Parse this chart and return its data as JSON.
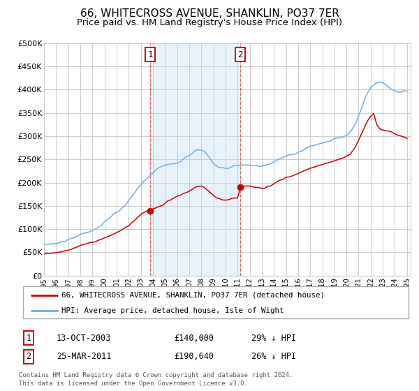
{
  "title": "66, WHITECROSS AVENUE, SHANKLIN, PO37 7ER",
  "subtitle": "Price paid vs. HM Land Registry's House Price Index (HPI)",
  "ylim": [
    0,
    500000
  ],
  "yticks": [
    0,
    50000,
    100000,
    150000,
    200000,
    250000,
    300000,
    350000,
    400000,
    450000,
    500000
  ],
  "ytick_labels": [
    "£0",
    "£50K",
    "£100K",
    "£150K",
    "£200K",
    "£250K",
    "£300K",
    "£350K",
    "£400K",
    "£450K",
    "£500K"
  ],
  "sale1_date": 2003.78,
  "sale1_price": 140000,
  "sale1_label": "1",
  "sale2_date": 2011.22,
  "sale2_price": 190640,
  "sale2_label": "2",
  "legend_line1": "66, WHITECROSS AVENUE, SHANKLIN, PO37 7ER (detached house)",
  "legend_line2": "HPI: Average price, detached house, Isle of Wight",
  "footnote1": "Contains HM Land Registry data © Crown copyright and database right 2024.",
  "footnote2": "This data is licensed under the Open Government Licence v3.0.",
  "table_row1": [
    "1",
    "13-OCT-2003",
    "£140,000",
    "29% ↓ HPI"
  ],
  "table_row2": [
    "2",
    "25-MAR-2011",
    "£190,640",
    "26% ↓ HPI"
  ],
  "hpi_color": "#6aaee8",
  "price_color": "#cc0000",
  "vline_color": "#e06060",
  "shade_color": "#e8f2fb",
  "grid_color": "#cccccc",
  "title_fontsize": 11,
  "subtitle_fontsize": 9.5,
  "hpi_data_x": [
    1995.0,
    1995.25,
    1995.5,
    1995.75,
    1996.0,
    1996.25,
    1996.5,
    1996.75,
    1997.0,
    1997.25,
    1997.5,
    1997.75,
    1998.0,
    1998.25,
    1998.5,
    1998.75,
    1999.0,
    1999.25,
    1999.5,
    1999.75,
    2000.0,
    2000.25,
    2000.5,
    2000.75,
    2001.0,
    2001.25,
    2001.5,
    2001.75,
    2002.0,
    2002.25,
    2002.5,
    2002.75,
    2003.0,
    2003.25,
    2003.5,
    2003.75,
    2004.0,
    2004.25,
    2004.5,
    2004.75,
    2005.0,
    2005.25,
    2005.5,
    2005.75,
    2006.0,
    2006.25,
    2006.5,
    2006.75,
    2007.0,
    2007.25,
    2007.5,
    2007.75,
    2008.0,
    2008.25,
    2008.5,
    2008.75,
    2009.0,
    2009.25,
    2009.5,
    2009.75,
    2010.0,
    2010.25,
    2010.5,
    2010.75,
    2011.0,
    2011.25,
    2011.5,
    2011.75,
    2012.0,
    2012.25,
    2012.5,
    2012.75,
    2013.0,
    2013.25,
    2013.5,
    2013.75,
    2014.0,
    2014.25,
    2014.5,
    2014.75,
    2015.0,
    2015.25,
    2015.5,
    2015.75,
    2016.0,
    2016.25,
    2016.5,
    2016.75,
    2017.0,
    2017.25,
    2017.5,
    2017.75,
    2018.0,
    2018.25,
    2018.5,
    2018.75,
    2019.0,
    2019.25,
    2019.5,
    2019.75,
    2020.0,
    2020.25,
    2020.5,
    2020.75,
    2021.0,
    2021.25,
    2021.5,
    2021.75,
    2022.0,
    2022.25,
    2022.5,
    2022.75,
    2023.0,
    2023.25,
    2023.5,
    2023.75,
    2024.0,
    2024.25,
    2024.5,
    2024.75,
    2025.0
  ],
  "hpi_data_y": [
    67000,
    67500,
    68000,
    68500,
    69500,
    71000,
    73000,
    75000,
    77000,
    79500,
    82000,
    85000,
    88000,
    91000,
    93000,
    95000,
    97000,
    100000,
    104000,
    109000,
    115000,
    120000,
    126000,
    131000,
    136000,
    141000,
    147000,
    154000,
    161000,
    170000,
    179000,
    188000,
    196000,
    203000,
    210000,
    216000,
    221000,
    226000,
    231000,
    235000,
    237000,
    239000,
    240000,
    241000,
    243000,
    246000,
    250000,
    254000,
    258000,
    263000,
    268000,
    270000,
    270000,
    267000,
    260000,
    251000,
    242000,
    236000,
    232000,
    231000,
    231000,
    232000,
    234000,
    236000,
    237000,
    238000,
    239000,
    239000,
    238000,
    237000,
    236000,
    235000,
    235000,
    236000,
    238000,
    241000,
    244000,
    248000,
    252000,
    255000,
    257000,
    259000,
    260000,
    262000,
    265000,
    268000,
    271000,
    274000,
    277000,
    279000,
    281000,
    283000,
    285000,
    287000,
    289000,
    291000,
    293000,
    295000,
    297000,
    299000,
    302000,
    307000,
    316000,
    328000,
    343000,
    360000,
    378000,
    393000,
    403000,
    410000,
    415000,
    416000,
    414000,
    410000,
    405000,
    400000,
    397000,
    395000,
    395000,
    396000,
    397000
  ],
  "price_data_x": [
    1995.0,
    1995.25,
    1995.5,
    1995.75,
    1996.0,
    1996.25,
    1996.5,
    1996.75,
    1997.0,
    1997.25,
    1997.5,
    1997.75,
    1998.0,
    1998.25,
    1998.5,
    1998.75,
    1999.0,
    1999.25,
    1999.5,
    1999.75,
    2000.0,
    2000.25,
    2000.5,
    2000.75,
    2001.0,
    2001.25,
    2001.5,
    2001.75,
    2002.0,
    2002.25,
    2002.5,
    2002.75,
    2003.0,
    2003.25,
    2003.5,
    2003.75,
    2004.0,
    2004.25,
    2004.5,
    2004.75,
    2005.0,
    2005.25,
    2005.5,
    2005.75,
    2006.0,
    2006.25,
    2006.5,
    2006.75,
    2007.0,
    2007.25,
    2007.5,
    2007.75,
    2008.0,
    2008.25,
    2008.5,
    2008.75,
    2009.0,
    2009.25,
    2009.5,
    2009.75,
    2010.0,
    2010.25,
    2010.5,
    2010.75,
    2011.0,
    2011.25,
    2011.5,
    2011.75,
    2012.0,
    2012.25,
    2012.5,
    2012.75,
    2013.0,
    2013.25,
    2013.5,
    2013.75,
    2014.0,
    2014.25,
    2014.5,
    2014.75,
    2015.0,
    2015.25,
    2015.5,
    2015.75,
    2016.0,
    2016.25,
    2016.5,
    2016.75,
    2017.0,
    2017.25,
    2017.5,
    2017.75,
    2018.0,
    2018.25,
    2018.5,
    2018.75,
    2019.0,
    2019.25,
    2019.5,
    2019.75,
    2020.0,
    2020.25,
    2020.5,
    2020.75,
    2021.0,
    2021.25,
    2021.5,
    2021.75,
    2022.0,
    2022.25,
    2022.5,
    2022.75,
    2023.0,
    2023.25,
    2023.5,
    2023.75,
    2024.0,
    2024.25,
    2024.5,
    2024.75,
    2025.0
  ],
  "price_data_y": [
    47000,
    47500,
    48000,
    48500,
    49000,
    50000,
    51500,
    53000,
    54500,
    57000,
    59500,
    62000,
    65000,
    67500,
    69500,
    71000,
    72500,
    74000,
    76000,
    78500,
    81000,
    84000,
    87000,
    90000,
    93000,
    96000,
    100000,
    104000,
    108000,
    114000,
    120000,
    126000,
    131000,
    135000,
    138500,
    141000,
    143000,
    145000,
    148000,
    151000,
    155000,
    160000,
    164000,
    167000,
    170000,
    173000,
    176000,
    179000,
    182000,
    186000,
    190000,
    192000,
    192000,
    190000,
    184000,
    178000,
    172000,
    168000,
    165000,
    163000,
    162000,
    163000,
    165000,
    167000,
    168000,
    190640,
    192000,
    193000,
    192000,
    191000,
    190000,
    189000,
    188000,
    189000,
    191000,
    194000,
    197000,
    201000,
    205000,
    208000,
    211000,
    213000,
    215000,
    217000,
    219000,
    222000,
    225000,
    228000,
    231000,
    233000,
    235000,
    237000,
    239000,
    241000,
    243000,
    245000,
    247000,
    249000,
    251000,
    253000,
    256000,
    260000,
    268000,
    278000,
    291000,
    305000,
    320000,
    333000,
    342000,
    348000,
    325000,
    315000,
    313000,
    311000,
    310000,
    308000,
    305000,
    302000,
    300000,
    298000,
    296000
  ]
}
